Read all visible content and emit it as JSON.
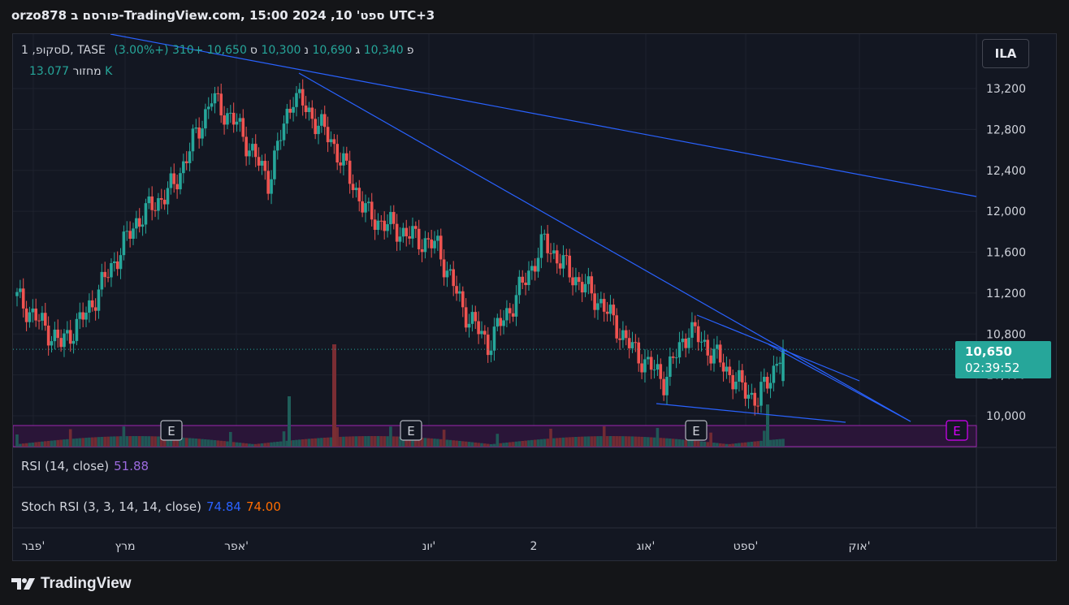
{
  "header": {
    "title": "orzo878 פורסם ב-TradingView.com, ספט' 10, 2024 15:00 UTC+3"
  },
  "legend": {
    "symbol": "סקופ, 1D, TASE",
    "open_label": "פ",
    "open": "10,340",
    "high_label": "ג",
    "high": "10,690",
    "low_label": "נ",
    "low": "10,300",
    "close_label": "ס",
    "close": "10,650",
    "change": "+310 (+3.00%)",
    "volume_label": "מחזור",
    "volume": "13.077 K"
  },
  "currency": "ILA",
  "last_price": {
    "price": "10,650",
    "countdown": "02:39:52"
  },
  "panels": {
    "rsi": {
      "label": "RSI (14, close)",
      "value": "51.88"
    },
    "stoch": {
      "label": "Stoch RSI (3, 3, 14, 14, close)",
      "k": "74.84",
      "d": "74.00"
    }
  },
  "footer": {
    "brand": "TradingView"
  },
  "colors": {
    "up": "#26a69a",
    "down": "#ef5350",
    "trendline": "#2962ff",
    "rsi_band": "#9c27b0",
    "rsi": "#9c6ade",
    "stoch_k": "#2962ff",
    "stoch_d": "#ff6d00"
  },
  "chart_data": {
    "type": "candlestick",
    "y_ticks": [
      "13,200",
      "12,800",
      "12,400",
      "12,000",
      "11,600",
      "11,200",
      "10,800",
      "10,400",
      "10,000"
    ],
    "y_tick_values": [
      13200,
      12800,
      12400,
      12000,
      11600,
      11200,
      10800,
      10400,
      10000
    ],
    "x_ticks": [
      "פבר'",
      "מרץ",
      "אפר'",
      "יונ'",
      "2",
      "אוג'",
      "ספט'",
      "אוק'"
    ],
    "earnings_markers": [
      "E",
      "E",
      "E",
      "E"
    ],
    "key_closes": [
      {
        "date": "early Feb",
        "close": 11150
      },
      {
        "date": "mid Feb",
        "close": 10700
      },
      {
        "date": "mid Mar",
        "close": 11900
      },
      {
        "date": "early Apr",
        "close": 13100
      },
      {
        "date": "late Apr",
        "close": 12300
      },
      {
        "date": "early May",
        "close": 13150
      },
      {
        "date": "late May",
        "close": 11950
      },
      {
        "date": "mid Jun",
        "close": 11650
      },
      {
        "date": "late Jun",
        "close": 10700
      },
      {
        "date": "mid Jul",
        "close": 11700
      },
      {
        "date": "early Aug",
        "close": 10800
      },
      {
        "date": "mid Aug",
        "close": 10350
      },
      {
        "date": "late Aug",
        "close": 10900
      },
      {
        "date": "early Sep",
        "close": 10150
      },
      {
        "date": "Sep 10",
        "close": 10650
      }
    ],
    "last": {
      "open": 10340,
      "high": 10690,
      "low": 10300,
      "close": 10650,
      "volume": "13.077 K"
    },
    "ylim": [
      9900,
      13400
    ]
  }
}
